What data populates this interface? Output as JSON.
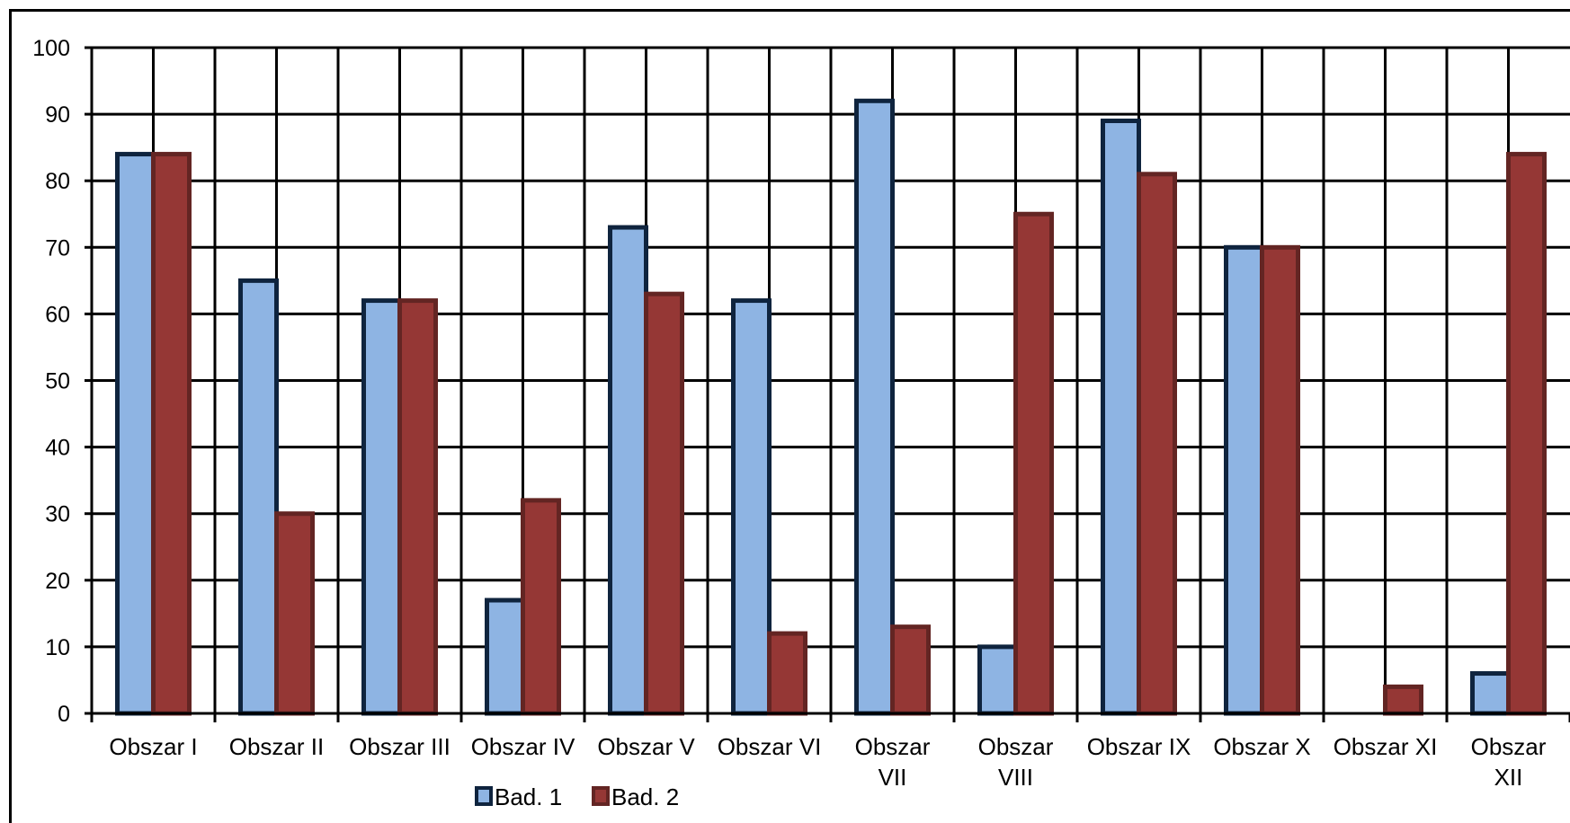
{
  "colors": {
    "series1_fill": "#8EB4E3",
    "series1_stroke": "#0F243E",
    "series2_fill": "#953735",
    "series2_stroke": "#632523",
    "grid": "#000000",
    "background": "#FFFFFF"
  },
  "chart_data": {
    "type": "bar",
    "title": "",
    "xlabel": "",
    "ylabel": "",
    "ylim": [
      0,
      100
    ],
    "yticks": [
      0,
      10,
      20,
      30,
      40,
      50,
      60,
      70,
      80,
      90,
      100
    ],
    "grid": true,
    "legend_position": "bottom",
    "categories": [
      [
        "Obszar I"
      ],
      [
        "Obszar II"
      ],
      [
        "Obszar III"
      ],
      [
        "Obszar IV"
      ],
      [
        "Obszar V"
      ],
      [
        "Obszar VI"
      ],
      [
        "Obszar",
        "VII"
      ],
      [
        "Obszar",
        "VIII"
      ],
      [
        "Obszar IX"
      ],
      [
        "Obszar X"
      ],
      [
        "Obszar XI"
      ],
      [
        "Obszar",
        "XII"
      ]
    ],
    "series": [
      {
        "name": "Bad. 1",
        "values": [
          84,
          65,
          62,
          17,
          73,
          62,
          92,
          10,
          89,
          70,
          0,
          6
        ]
      },
      {
        "name": "Bad. 2",
        "values": [
          84,
          30,
          62,
          32,
          63,
          12,
          13,
          75,
          81,
          70,
          4,
          84
        ]
      }
    ]
  }
}
